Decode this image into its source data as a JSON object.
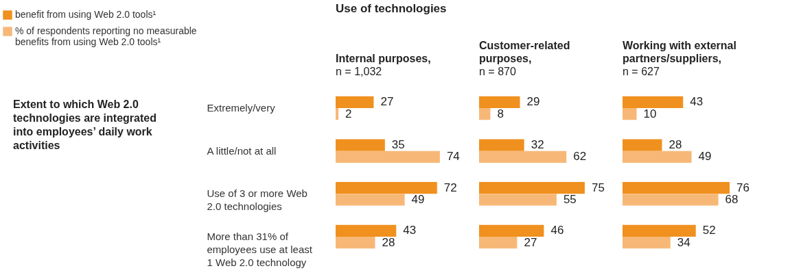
{
  "chart_data": [
    {
      "type": "bar",
      "orientation": "horizontal",
      "title": "Internal purposes,",
      "subtitle": "n = 1,032",
      "categories": [
        "Extremely/very",
        "A little/not at all",
        "Use of 3 or more Web 2.0 technologies",
        "More than 31% of employees use at least 1 Web 2.0 technology"
      ],
      "series": [
        {
          "name": "benefit from using Web 2.0 tools¹",
          "color": "#f0901e",
          "values": [
            27,
            35,
            72,
            43
          ]
        },
        {
          "name": "% of respondents reporting no measurable benefits from using Web 2.0 tools¹",
          "color": "#f7b877",
          "values": [
            2,
            74,
            49,
            28
          ]
        }
      ],
      "data_labels": true,
      "legend": "top left",
      "annotations": [
        "Use of technologies",
        "Extent to which Web 2.0 technologies are integrated into employees’ daily work activities"
      ]
    },
    {
      "type": "bar",
      "orientation": "horizontal",
      "title": "Customer-related purposes,",
      "subtitle": "n = 870",
      "categories": [
        "Extremely/very",
        "A little/not at all",
        "Use of 3 or more Web 2.0 technologies",
        "More than 31% of employees use at least 1 Web 2.0 technology"
      ],
      "series": [
        {
          "name": "benefit from using Web 2.0 tools¹",
          "color": "#f0901e",
          "values": [
            29,
            32,
            75,
            46
          ]
        },
        {
          "name": "% of respondents reporting no measurable benefits from using Web 2.0 tools¹",
          "color": "#f7b877",
          "values": [
            8,
            62,
            55,
            27
          ]
        }
      ],
      "data_labels": true,
      "tick_labels": false
    },
    {
      "type": "bar",
      "orientation": "horizontal",
      "title": "Working with external partners/suppliers,",
      "subtitle": "n = 627",
      "categories": [
        "Extremely/very",
        "A little/not at all",
        "Use of 3 or more Web 2.0 technologies",
        "More than 31% of employees use at least 1 Web 2.0 technology"
      ],
      "series": [
        {
          "name": "benefit from using Web 2.0 tools¹",
          "color": "#f0901e",
          "values": [
            43,
            28,
            76,
            52
          ]
        },
        {
          "name": "% of respondents reporting no measurable benefits from using Web 2.0 tools¹",
          "color": "#f7b877",
          "values": [
            10,
            49,
            68,
            34
          ]
        }
      ],
      "data_labels": true,
      "tick_labels": false
    }
  ]
}
